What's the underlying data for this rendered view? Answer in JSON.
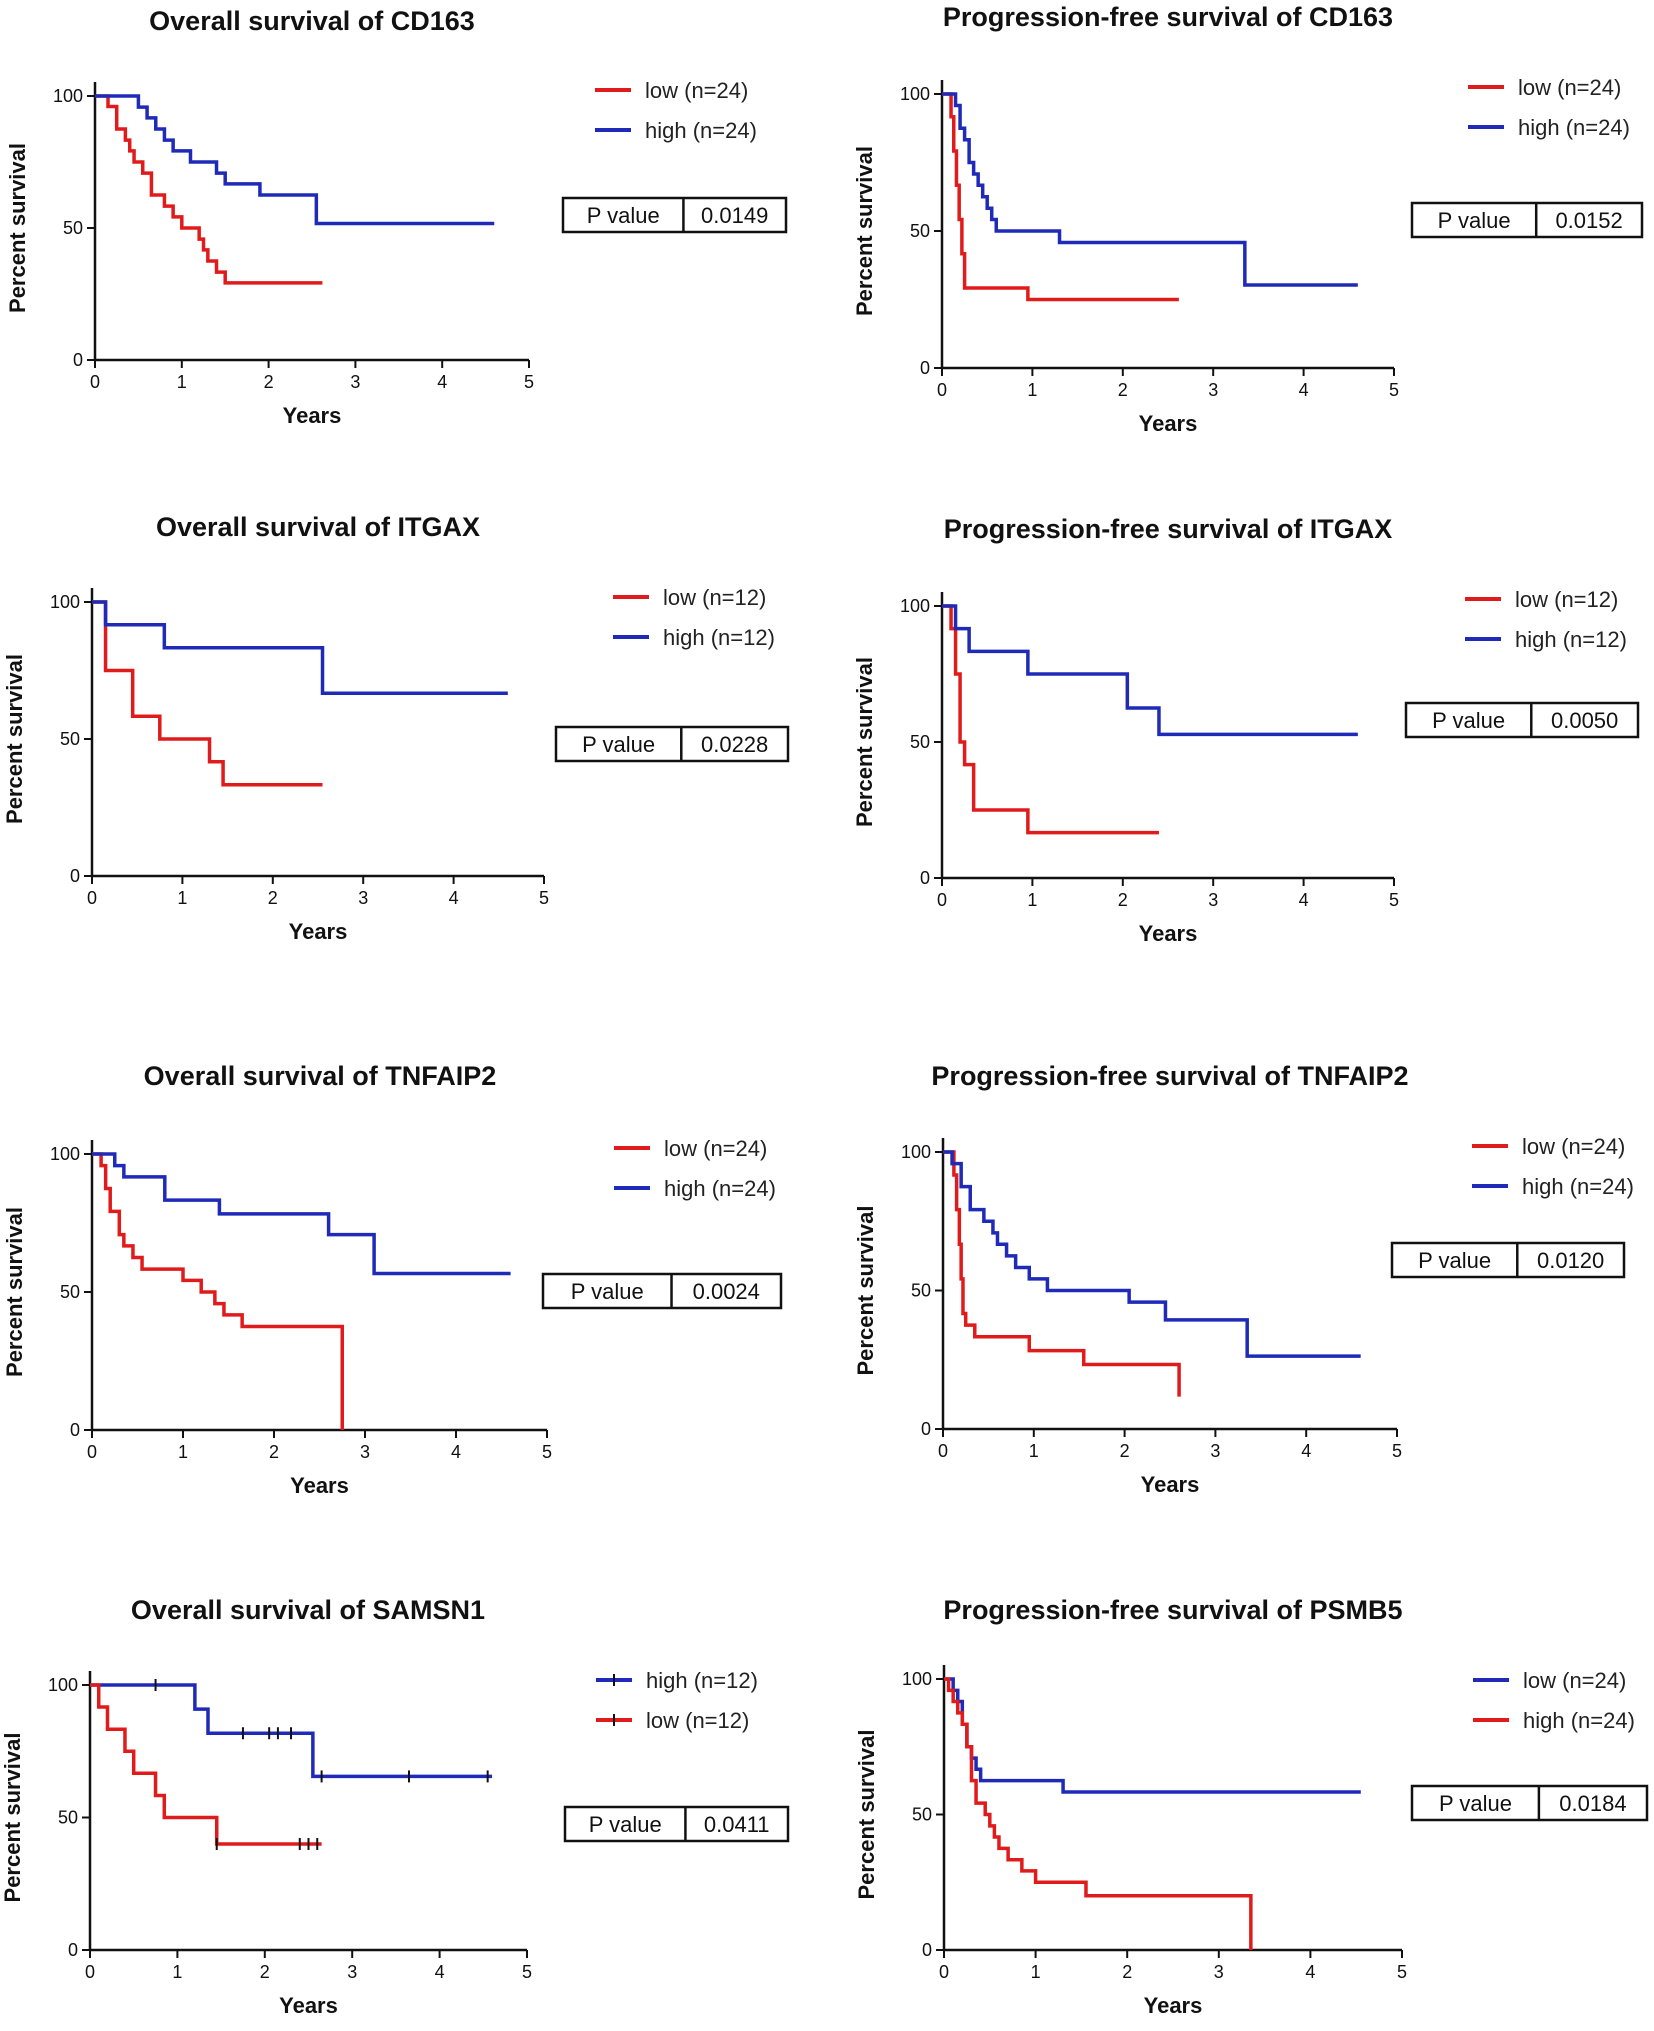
{
  "colors": {
    "red": "#e01b1b",
    "blue": "#1f2bb8",
    "axis": "#111111"
  },
  "chart_data": [
    {
      "type": "line",
      "title": "Overall survival of CD163",
      "xlabel": "Years",
      "ylabel": "Percent survival",
      "xlim": [
        0,
        5
      ],
      "ylim": [
        0,
        100
      ],
      "xticks": [
        "0",
        "1",
        "2",
        "3",
        "4",
        "5"
      ],
      "yticks": [
        "0",
        "50",
        "100"
      ],
      "legend": [
        "low (n=24)",
        "high (n=24)"
      ],
      "pvalue_label": "P value",
      "pvalue": "0.0149",
      "series": [
        {
          "name": "low (n=24)",
          "color": "red",
          "x": [
            0,
            0.15,
            0.25,
            0.35,
            0.4,
            0.45,
            0.55,
            0.65,
            0.8,
            0.9,
            1.0,
            1.1,
            1.2,
            1.25,
            1.3,
            1.4,
            1.5,
            1.55,
            2.62
          ],
          "y": [
            100,
            96,
            87.5,
            83.3,
            79.2,
            75,
            70.8,
            62.5,
            58.3,
            54.2,
            50,
            50,
            45.8,
            41.7,
            37.5,
            33.3,
            29.2,
            29.2,
            29.2
          ]
        },
        {
          "name": "high (n=24)",
          "color": "blue",
          "x": [
            0,
            0.5,
            0.6,
            0.7,
            0.8,
            0.9,
            1.0,
            1.1,
            1.4,
            1.5,
            1.9,
            2.55,
            4.6
          ],
          "y": [
            100,
            95.8,
            91.7,
            87.5,
            83.3,
            79.2,
            79.2,
            75,
            70.8,
            66.7,
            62.5,
            51.7,
            51.7
          ]
        }
      ]
    },
    {
      "type": "line",
      "title": "Progression-free survival of CD163",
      "xlabel": "Years",
      "ylabel": "Percent survival",
      "xlim": [
        0,
        5
      ],
      "ylim": [
        0,
        100
      ],
      "xticks": [
        "0",
        "1",
        "2",
        "3",
        "4",
        "5"
      ],
      "yticks": [
        "0",
        "50",
        "100"
      ],
      "legend": [
        "low (n=24)",
        "high (n=24)"
      ],
      "pvalue_label": "P value",
      "pvalue": "0.0152",
      "series": [
        {
          "name": "low (n=24)",
          "color": "red",
          "x": [
            0,
            0.1,
            0.13,
            0.16,
            0.19,
            0.22,
            0.25,
            0.95,
            2.62
          ],
          "y": [
            100,
            91.7,
            79.2,
            66.7,
            54.2,
            41.7,
            29.2,
            25,
            25
          ]
        },
        {
          "name": "high (n=24)",
          "color": "blue",
          "x": [
            0,
            0.15,
            0.2,
            0.25,
            0.3,
            0.35,
            0.4,
            0.45,
            0.5,
            0.55,
            0.6,
            1.3,
            3.35,
            4.6
          ],
          "y": [
            100,
            95.8,
            87.5,
            83.3,
            75,
            70.8,
            66.7,
            62.5,
            58.3,
            54.2,
            50,
            45.8,
            30.3,
            30.3
          ]
        }
      ]
    },
    {
      "type": "line",
      "title": "Overall survival of ITGAX",
      "xlabel": "Years",
      "ylabel": "Percent survival",
      "xlim": [
        0,
        5
      ],
      "ylim": [
        0,
        100
      ],
      "xticks": [
        "0",
        "1",
        "2",
        "3",
        "4",
        "5"
      ],
      "yticks": [
        "0",
        "50",
        "100"
      ],
      "legend": [
        "low (n=12)",
        "high (n=12)"
      ],
      "pvalue_label": "P value",
      "pvalue": "0.0228",
      "series": [
        {
          "name": "low (n=12)",
          "color": "red",
          "x": [
            0,
            0.15,
            0.45,
            0.75,
            1.3,
            1.45,
            2.55
          ],
          "y": [
            100,
            75,
            58.3,
            50,
            41.7,
            33.3,
            33.3
          ]
        },
        {
          "name": "high (n=12)",
          "color": "blue",
          "x": [
            0,
            0.15,
            0.8,
            2.55,
            4.6
          ],
          "y": [
            100,
            91.7,
            83.3,
            66.7,
            66.7
          ]
        }
      ]
    },
    {
      "type": "line",
      "title": "Progression-free survival of ITGAX",
      "xlabel": "Years",
      "ylabel": "Percent survival",
      "xlim": [
        0,
        5
      ],
      "ylim": [
        0,
        100
      ],
      "xticks": [
        "0",
        "1",
        "2",
        "3",
        "4",
        "5"
      ],
      "yticks": [
        "0",
        "50",
        "100"
      ],
      "legend": [
        "low (n=12)",
        "high (n=12)"
      ],
      "pvalue_label": "P value",
      "pvalue": "0.0050",
      "series": [
        {
          "name": "low (n=12)",
          "color": "red",
          "x": [
            0,
            0.1,
            0.15,
            0.2,
            0.25,
            0.35,
            0.95,
            2.4
          ],
          "y": [
            100,
            91.7,
            75,
            50,
            41.7,
            25,
            16.7,
            16.7
          ]
        },
        {
          "name": "high (n=12)",
          "color": "blue",
          "x": [
            0,
            0.15,
            0.3,
            0.95,
            2.05,
            2.4,
            4.6
          ],
          "y": [
            100,
            91.7,
            83.3,
            75,
            62.5,
            52.8,
            52.8
          ]
        }
      ]
    },
    {
      "type": "line",
      "title": "Overall survival of TNFAIP2",
      "xlabel": "Years",
      "ylabel": "Percent survival",
      "xlim": [
        0,
        5
      ],
      "ylim": [
        0,
        100
      ],
      "xticks": [
        "0",
        "1",
        "2",
        "3",
        "4",
        "5"
      ],
      "yticks": [
        "0",
        "50",
        "100"
      ],
      "legend": [
        "low (n=24)",
        "high (n=24)"
      ],
      "pvalue_label": "P value",
      "pvalue": "0.0024",
      "series": [
        {
          "name": "low (n=24)",
          "color": "red",
          "x": [
            0,
            0.1,
            0.15,
            0.2,
            0.3,
            0.35,
            0.45,
            0.55,
            1.0,
            1.2,
            1.35,
            1.45,
            1.65,
            2.75,
            2.75
          ],
          "y": [
            100,
            95.8,
            87.5,
            79.2,
            70.8,
            66.7,
            62.5,
            58.3,
            54.2,
            50,
            45.8,
            41.7,
            37.5,
            37.5,
            0
          ]
        },
        {
          "name": "high (n=24)",
          "color": "blue",
          "x": [
            0,
            0.25,
            0.35,
            0.8,
            1.4,
            2.6,
            3.1,
            4.6
          ],
          "y": [
            100,
            95.8,
            91.7,
            83.3,
            78.3,
            70.8,
            56.7,
            56.7
          ]
        }
      ]
    },
    {
      "type": "line",
      "title": "Progression-free survival of TNFAIP2",
      "xlabel": "Years",
      "ylabel": "Percent survival",
      "xlim": [
        0,
        5
      ],
      "ylim": [
        0,
        100
      ],
      "xticks": [
        "0",
        "1",
        "2",
        "3",
        "4",
        "5"
      ],
      "yticks": [
        "0",
        "50",
        "100"
      ],
      "legend": [
        "low (n=24)",
        "high (n=24)"
      ],
      "pvalue_label": "P value",
      "pvalue": "0.0120",
      "series": [
        {
          "name": "low (n=24)",
          "color": "red",
          "x": [
            0,
            0.12,
            0.15,
            0.18,
            0.2,
            0.22,
            0.25,
            0.35,
            0.95,
            1.55,
            2.6,
            2.6
          ],
          "y": [
            100,
            91.7,
            79.2,
            66.7,
            54.2,
            41.7,
            37.5,
            33.3,
            28.3,
            23.3,
            23.3,
            11.7
          ]
        },
        {
          "name": "high (n=24)",
          "color": "blue",
          "x": [
            0,
            0.1,
            0.2,
            0.3,
            0.45,
            0.55,
            0.6,
            0.7,
            0.8,
            0.95,
            1.15,
            2.05,
            2.45,
            3.35,
            4.6
          ],
          "y": [
            100,
            95.8,
            87.5,
            79.2,
            75,
            70.8,
            66.7,
            62.5,
            58.3,
            54.2,
            50,
            45.8,
            39.4,
            26.3,
            26.3
          ]
        }
      ]
    },
    {
      "type": "line",
      "title": "Overall survival of SAMSN1",
      "xlabel": "Years",
      "ylabel": "Percent survival",
      "xlim": [
        0,
        5
      ],
      "ylim": [
        0,
        100
      ],
      "xticks": [
        "0",
        "1",
        "2",
        "3",
        "4",
        "5"
      ],
      "yticks": [
        "0",
        "50",
        "100"
      ],
      "legend": [
        "high (n=12)",
        "low (n=12)"
      ],
      "pvalue_label": "P value",
      "pvalue": "0.0411",
      "series": [
        {
          "name": "high (n=12)",
          "color": "blue",
          "x": [
            0,
            1.2,
            1.35,
            2.55,
            4.6
          ],
          "y": [
            100,
            90.9,
            81.8,
            65.5,
            65.5
          ],
          "censored_x": [
            0.75,
            1.75,
            2.05,
            2.15,
            2.3,
            2.65,
            3.65,
            4.55
          ]
        },
        {
          "name": "low (n=12)",
          "color": "red",
          "x": [
            0,
            0.1,
            0.2,
            0.4,
            0.5,
            0.75,
            0.85,
            1.45,
            2.65
          ],
          "y": [
            100,
            91.7,
            83.3,
            75,
            66.7,
            58.3,
            50,
            40,
            40
          ],
          "censored_x": [
            1.45,
            2.4,
            2.5,
            2.6
          ]
        }
      ]
    },
    {
      "type": "line",
      "title": "Progression-free survival of PSMB5",
      "xlabel": "Years",
      "ylabel": "Percent survival",
      "xlim": [
        0,
        5
      ],
      "ylim": [
        0,
        100
      ],
      "xticks": [
        "0",
        "1",
        "2",
        "3",
        "4",
        "5"
      ],
      "yticks": [
        "0",
        "50",
        "100"
      ],
      "legend": [
        "low (n=24)",
        "high (n=24)"
      ],
      "pvalue_label": "P value",
      "pvalue": "0.0184",
      "series": [
        {
          "name": "low (n=24)",
          "color": "blue",
          "x": [
            0,
            0.1,
            0.15,
            0.2,
            0.25,
            0.3,
            0.35,
            0.4,
            1.3,
            4.55
          ],
          "y": [
            100,
            95.8,
            91.7,
            83.3,
            75,
            70.8,
            66.7,
            62.5,
            58.3,
            58.3
          ]
        },
        {
          "name": "high (n=24)",
          "color": "red",
          "x": [
            0,
            0.05,
            0.1,
            0.15,
            0.2,
            0.25,
            0.3,
            0.35,
            0.45,
            0.5,
            0.55,
            0.6,
            0.7,
            0.85,
            1.0,
            1.55,
            3.35,
            3.35
          ],
          "y": [
            100,
            95.8,
            91.7,
            87.5,
            83.3,
            75,
            62.5,
            54.2,
            50,
            45.8,
            41.7,
            37.5,
            33.3,
            29.2,
            25,
            20,
            20,
            0
          ]
        }
      ]
    }
  ]
}
